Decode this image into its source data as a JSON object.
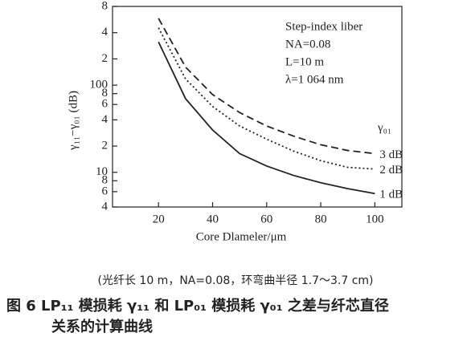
{
  "chart_data": {
    "type": "line",
    "x_label": "Core Dlameler/μm",
    "y_label": "γ₁₁−γ₀₁ (dB)",
    "annotations": [
      "Step-index liber",
      "NA=0.08",
      "L=10 m",
      "λ=1 064 nm"
    ],
    "legend_title": "γ₀₁",
    "x": [
      20,
      30,
      40,
      50,
      60,
      70,
      80,
      90,
      100
    ],
    "series": [
      {
        "name": "3 dB",
        "color": "#222222",
        "dash": "dashed",
        "values": [
          584,
          161,
          78,
          48.5,
          34,
          26,
          20.7,
          17.8,
          16.4
        ]
      },
      {
        "name": "2 dB",
        "color": "#222222",
        "dash": "dotted",
        "values": [
          455,
          118,
          57,
          34,
          24,
          17.5,
          13.6,
          11.4,
          10.9
        ]
      },
      {
        "name": "1 dB",
        "color": "#222222",
        "dash": "solid",
        "values": [
          313,
          70,
          30.6,
          16.4,
          11.8,
          9.2,
          7.6,
          6.5,
          5.7
        ]
      }
    ],
    "xlim": [
      3,
      110
    ],
    "xticks": [
      20,
      40,
      60,
      80,
      100
    ],
    "ylim": [
      4,
      800
    ],
    "log_y": true,
    "yticks": [
      {
        "value": 800,
        "label": "8"
      },
      {
        "value": 400,
        "label": "4"
      },
      {
        "value": 200,
        "label": "2"
      },
      100,
      {
        "value": 80,
        "label": "8"
      },
      {
        "value": 60,
        "label": "6"
      },
      {
        "value": 40,
        "label": "4"
      },
      {
        "value": 20,
        "label": "2"
      },
      10,
      8,
      6,
      4
    ],
    "grid": false,
    "caption": [
      "(光纤长 10 m，NA=0.08，环弯曲半径 1.7～3.7 cm)",
      "图 6   LP₁₁ 模损耗 γ₁₁ 和 LP₀₁ 模损耗 γ₀₁ 之差与纤芯直径",
      "关系的计算曲线"
    ]
  }
}
